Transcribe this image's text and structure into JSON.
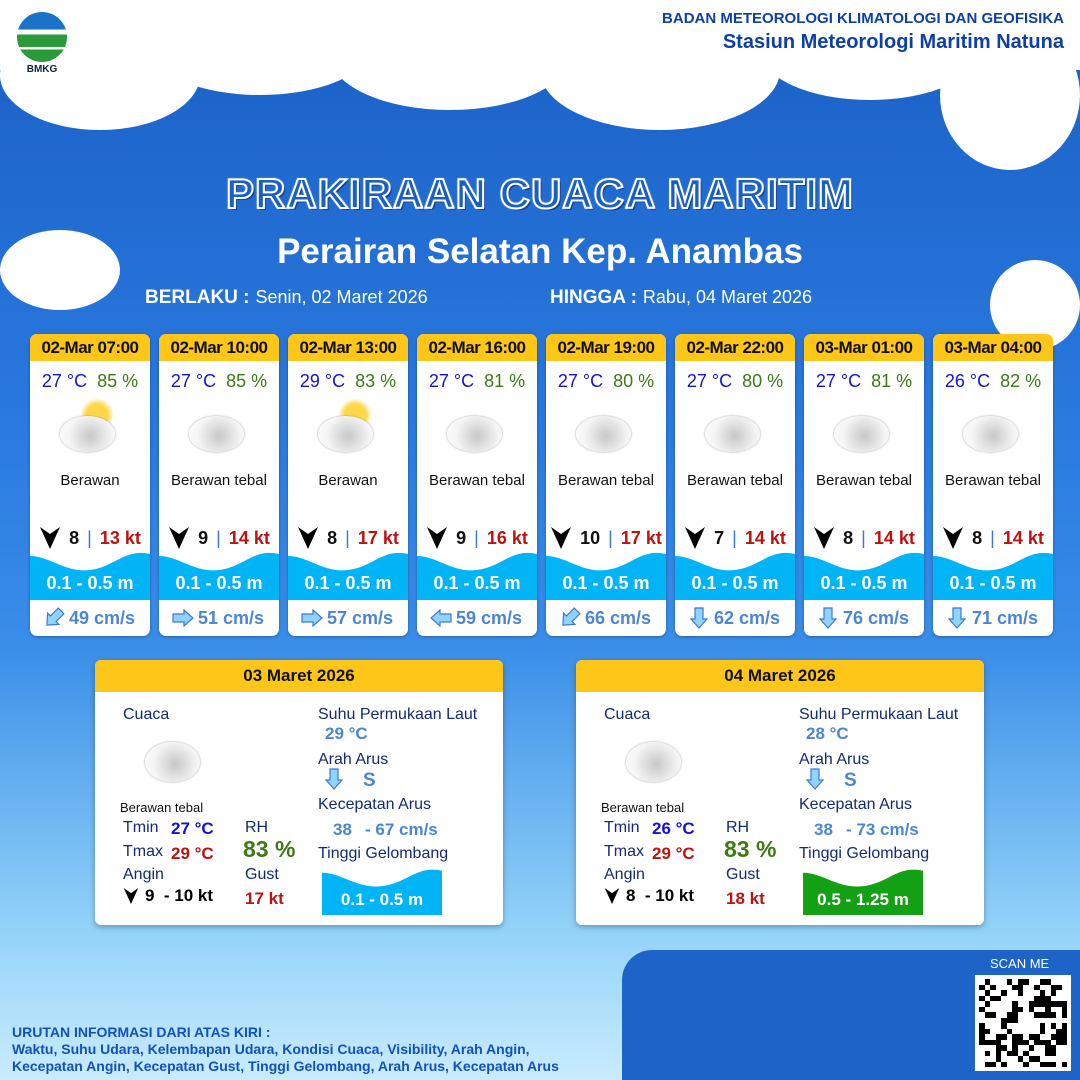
{
  "header": {
    "logo_text": "BMKG",
    "org": "BADAN METEOROLOGI KLIMATOLOGI DAN GEOFISIKA",
    "station": "Stasiun Meteorologi Maritim Natuna"
  },
  "title": "PRAKIRAAN CUACA MARITIM",
  "area": "Perairan Selatan Kep. Anambas",
  "validity": {
    "from_label": "BERLAKU :",
    "from": "Senin, 02 Maret 2026",
    "to_label": "HINGGA :",
    "to": "Rabu, 04 Maret 2026"
  },
  "colors": {
    "card_header": "#ffc61a",
    "temp": "#1212e0",
    "humidity": "#3c7a14",
    "gust": "#c01010",
    "wave_low": "#00b4f5",
    "wave_mid": "#14a014"
  },
  "forecasts": [
    {
      "time": "02-Mar 07:00",
      "temp": "27 °C",
      "rh": "85 %",
      "icon": "partly-cloudy-icon",
      "condition": "Berawan",
      "wind_speed": "8",
      "gust": "13 kt",
      "wave": "0.1 - 0.5 m",
      "current_dir": "SW",
      "current": "49 cm/s"
    },
    {
      "time": "02-Mar 10:00",
      "temp": "27 °C",
      "rh": "85 %",
      "icon": "cloudy-icon",
      "condition": "Berawan tebal",
      "wind_speed": "9",
      "gust": "14 kt",
      "wave": "0.1 - 0.5 m",
      "current_dir": "E",
      "current": "51 cm/s"
    },
    {
      "time": "02-Mar 13:00",
      "temp": "29 °C",
      "rh": "83 %",
      "icon": "partly-cloudy-icon",
      "condition": "Berawan",
      "wind_speed": "8",
      "gust": "17 kt",
      "wave": "0.1 - 0.5 m",
      "current_dir": "E",
      "current": "57 cm/s"
    },
    {
      "time": "02-Mar 16:00",
      "temp": "27 °C",
      "rh": "81 %",
      "icon": "cloudy-icon",
      "condition": "Berawan tebal",
      "wind_speed": "9",
      "gust": "16 kt",
      "wave": "0.1 - 0.5 m",
      "current_dir": "W",
      "current": "59 cm/s"
    },
    {
      "time": "02-Mar 19:00",
      "temp": "27 °C",
      "rh": "80 %",
      "icon": "cloudy-icon",
      "condition": "Berawan tebal",
      "wind_speed": "10",
      "gust": "17 kt",
      "wave": "0.1 - 0.5 m",
      "current_dir": "SW",
      "current": "66 cm/s"
    },
    {
      "time": "02-Mar 22:00",
      "temp": "27 °C",
      "rh": "80 %",
      "icon": "cloudy-icon",
      "condition": "Berawan tebal",
      "wind_speed": "7",
      "gust": "14 kt",
      "wave": "0.1 - 0.5 m",
      "current_dir": "S",
      "current": "62 cm/s"
    },
    {
      "time": "03-Mar 01:00",
      "temp": "27 °C",
      "rh": "81 %",
      "icon": "cloudy-icon",
      "condition": "Berawan tebal",
      "wind_speed": "8",
      "gust": "14 kt",
      "wave": "0.1 - 0.5 m",
      "current_dir": "S",
      "current": "76 cm/s"
    },
    {
      "time": "03-Mar 04:00",
      "temp": "26 °C",
      "rh": "82 %",
      "icon": "cloudy-icon",
      "condition": "Berawan tebal",
      "wind_speed": "8",
      "gust": "14 kt",
      "wave": "0.1 - 0.5 m",
      "current_dir": "S",
      "current": "71 cm/s"
    }
  ],
  "labels": {
    "cuaca": "Cuaca",
    "tmin": "Tmin",
    "tmax": "Tmax",
    "angin": "Angin",
    "rh": "RH",
    "gust": "Gust",
    "sst": "Suhu Permukaan Laut",
    "arah": "Arah Arus",
    "kec": "Kecepatan Arus",
    "wave": "Tinggi Gelombang"
  },
  "daily": [
    {
      "date": "03 Maret 2026",
      "condition": "Berawan tebal",
      "tmin": "27 °C",
      "tmax": "29 °C",
      "wind": "9  - 10 kt",
      "rh": "83 %",
      "gust": "17 kt",
      "sst": "29 °C",
      "current_dir": "S",
      "current_min": "38",
      "current_max": "- 67 cm/s",
      "wave": "0.1 - 0.5 m",
      "wave_color": "#00b4f5"
    },
    {
      "date": "04 Maret 2026",
      "condition": "Berawan tebal",
      "tmin": "26 °C",
      "tmax": "29 °C",
      "wind": "8  - 10 kt",
      "rh": "83 %",
      "gust": "18 kt",
      "sst": "28 °C",
      "current_dir": "S",
      "current_min": "38",
      "current_max": "- 73 cm/s",
      "wave": "0.5 - 1.25 m",
      "wave_color": "#14a014"
    }
  ],
  "footer": {
    "heading": "URUTAN INFORMASI DARI ATAS KIRI :",
    "line1": "Waktu, Suhu Udara, Kelembapan Udara, Kondisi Cuaca, Visibility, Arah Angin,",
    "line2": "Kecepatan Angin, Kecepatan Gust, Tinggi Gelombang, Arah Arus, Kecepatan Arus",
    "scan": "SCAN ME"
  }
}
